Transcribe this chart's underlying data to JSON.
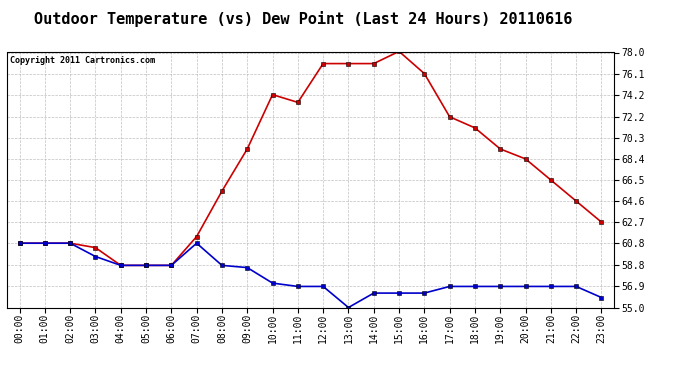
{
  "title": "Outdoor Temperature (vs) Dew Point (Last 24 Hours) 20110616",
  "copyright": "Copyright 2011 Cartronics.com",
  "hours": [
    "00:00",
    "01:00",
    "02:00",
    "03:00",
    "04:00",
    "05:00",
    "06:00",
    "07:00",
    "08:00",
    "09:00",
    "10:00",
    "11:00",
    "12:00",
    "13:00",
    "14:00",
    "15:00",
    "16:00",
    "17:00",
    "18:00",
    "19:00",
    "20:00",
    "21:00",
    "22:00",
    "23:00"
  ],
  "temp": [
    60.8,
    60.8,
    60.8,
    60.4,
    58.8,
    58.8,
    58.8,
    61.4,
    65.5,
    69.3,
    74.2,
    73.5,
    77.0,
    77.0,
    77.0,
    78.1,
    76.1,
    72.2,
    71.2,
    69.3,
    68.4,
    66.5,
    64.6,
    62.7
  ],
  "dew": [
    60.8,
    60.8,
    60.8,
    59.6,
    58.8,
    58.8,
    58.8,
    60.8,
    58.8,
    58.6,
    57.2,
    56.9,
    56.9,
    55.0,
    56.3,
    56.3,
    56.3,
    56.9,
    56.9,
    56.9,
    56.9,
    56.9,
    56.9,
    55.9
  ],
  "temp_color": "#cc0000",
  "dew_color": "#0000cc",
  "bg_color": "#ffffff",
  "plot_bg": "#ffffff",
  "grid_color": "#b0b0b0",
  "ymin": 55.0,
  "ymax": 78.0,
  "yticks": [
    55.0,
    56.9,
    58.8,
    60.8,
    62.7,
    64.6,
    66.5,
    68.4,
    70.3,
    72.2,
    74.2,
    76.1,
    78.0
  ],
  "title_fontsize": 11,
  "copyright_fontsize": 6,
  "tick_fontsize": 7
}
